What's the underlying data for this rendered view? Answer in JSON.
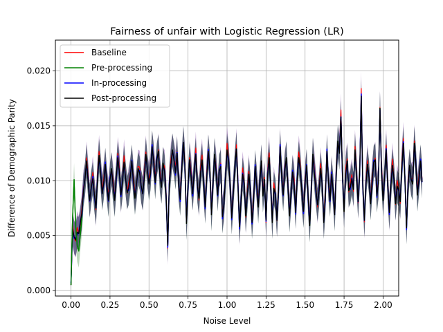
{
  "chart_data": {
    "type": "line",
    "title": "Fairness of unfair with Logistic Regression (LR)",
    "xlabel": "Noise Level",
    "ylabel": "Difference of Demographic Parity",
    "xlim": [
      -0.1,
      2.1
    ],
    "ylim": [
      -0.0005,
      0.0228
    ],
    "xticks": [
      0.0,
      0.25,
      0.5,
      0.75,
      1.0,
      1.25,
      1.5,
      1.75,
      2.0
    ],
    "xtick_labels": [
      "0.00",
      "0.25",
      "0.50",
      "0.75",
      "1.00",
      "1.25",
      "1.50",
      "1.75",
      "2.00"
    ],
    "yticks": [
      0.0,
      0.005,
      0.01,
      0.015,
      0.02
    ],
    "ytick_labels": [
      "0.000",
      "0.005",
      "0.010",
      "0.015",
      "0.020"
    ],
    "grid": true,
    "legend_position": "top-left",
    "x_start": 0.0,
    "x_step": 0.01,
    "band_halfwidth": 0.0015,
    "series": [
      {
        "name": "Baseline",
        "color": "#ff0000"
      },
      {
        "name": "Pre-processing",
        "color": "#008000"
      },
      {
        "name": "In-processing",
        "color": "#0000ff"
      },
      {
        "name": "Post-processing",
        "color": "#000000"
      }
    ],
    "band_colors": {
      "purple": "#7b3fa0",
      "dark": "#2a2f55",
      "green": "#3f8a3f"
    },
    "early_green": [
      0.0005,
      0.0065,
      0.0101,
      0.0058,
      0.0041,
      0.0036,
      0.0052,
      0.0066
    ],
    "main_values": [
      0.0005,
      0.0056,
      0.0049,
      0.0046,
      0.0053,
      0.0052,
      0.0062,
      0.0071,
      0.0091,
      0.0102,
      0.0118,
      0.0099,
      0.0082,
      0.0094,
      0.0102,
      0.0087,
      0.0075,
      0.0101,
      0.0123,
      0.0108,
      0.0088,
      0.0098,
      0.0115,
      0.0096,
      0.0082,
      0.0101,
      0.0111,
      0.0095,
      0.0082,
      0.0103,
      0.0121,
      0.0108,
      0.0087,
      0.0099,
      0.0117,
      0.0102,
      0.0089,
      0.0093,
      0.0104,
      0.0118,
      0.0099,
      0.0084,
      0.0097,
      0.0111,
      0.0107,
      0.0095,
      0.0088,
      0.0103,
      0.0124,
      0.0109,
      0.0097,
      0.0107,
      0.0131,
      0.0117,
      0.0098,
      0.0119,
      0.0127,
      0.0104,
      0.0094,
      0.0116,
      0.0108,
      0.0085,
      0.0041,
      0.0097,
      0.0114,
      0.0128,
      0.0119,
      0.0107,
      0.0125,
      0.0097,
      0.0083,
      0.0111,
      0.0135,
      0.0115,
      0.0061,
      0.0096,
      0.0119,
      0.0103,
      0.0088,
      0.0109,
      0.0124,
      0.0095,
      0.0084,
      0.0107,
      0.0119,
      0.0098,
      0.0076,
      0.0103,
      0.0127,
      0.0111,
      0.0069,
      0.0097,
      0.0124,
      0.0108,
      0.0087,
      0.0109,
      0.0113,
      0.0067,
      0.0079,
      0.0102,
      0.0128,
      0.0118,
      0.0096,
      0.0066,
      0.0089,
      0.0112,
      0.0129,
      0.0096,
      0.0058,
      0.0082,
      0.0106,
      0.0097,
      0.0068,
      0.0087,
      0.0106,
      0.0091,
      0.0062,
      0.0081,
      0.0113,
      0.0097,
      0.0076,
      0.0099,
      0.0118,
      0.0086,
      0.0101,
      0.0064,
      0.0105,
      0.0121,
      0.0095,
      0.0062,
      0.0093,
      0.0087,
      0.0064,
      0.0091,
      0.0131,
      0.0104,
      0.0087,
      0.0109,
      0.0121,
      0.0096,
      0.0068,
      0.0088,
      0.0108,
      0.0096,
      0.0071,
      0.0104,
      0.0121,
      0.0109,
      0.0089,
      0.0072,
      0.0098,
      0.0114,
      0.0084,
      0.0059,
      0.0092,
      0.0124,
      0.0106,
      0.0091,
      0.0078,
      0.0091,
      0.0111,
      0.0096,
      0.0062,
      0.0084,
      0.0127,
      0.0098,
      0.0082,
      0.0106,
      0.0091,
      0.0069,
      0.0108,
      0.0136,
      0.0125,
      0.0158,
      0.0103,
      0.0072,
      0.0106,
      0.0118,
      0.0091,
      0.0094,
      0.0102,
      0.0092,
      0.0128,
      0.0104,
      0.0081,
      0.0107,
      0.0177,
      0.0094,
      0.0064,
      0.0097,
      0.0115,
      0.0103,
      0.0079,
      0.0099,
      0.0117,
      0.0119,
      0.0086,
      0.0098,
      0.0166,
      0.0107,
      0.0082,
      0.0104,
      0.0128,
      0.0094,
      0.0071,
      0.0096,
      0.0114,
      0.0101,
      0.0079,
      0.0095,
      0.0091,
      0.0081,
      0.0112,
      0.0134,
      0.0102,
      0.0057,
      0.0096,
      0.0114,
      0.0101,
      0.0097,
      0.0134,
      0.0116,
      0.0087,
      0.0102,
      0.0118,
      0.0099
    ]
  }
}
